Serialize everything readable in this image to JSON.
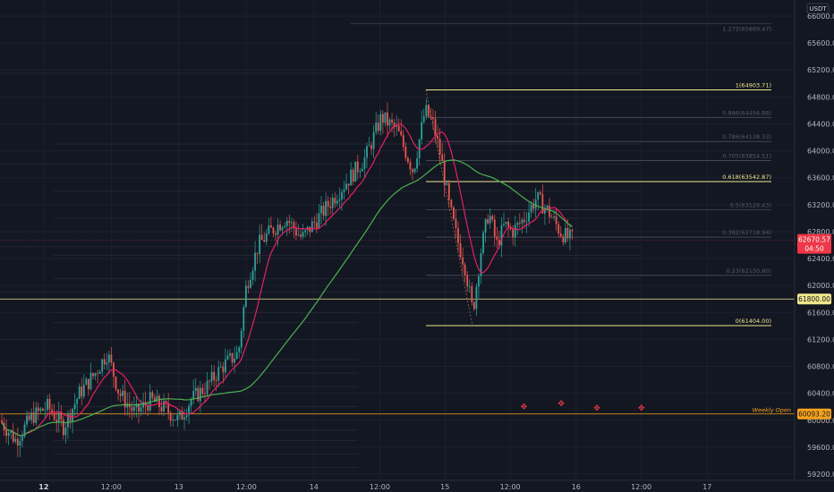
{
  "chart_data": {
    "type": "candlestick",
    "currency": "USDT",
    "ylim": [
      59100,
      66150
    ],
    "y_ticks": [
      66000,
      65600,
      65200,
      64800,
      64400,
      64000,
      63600,
      63200,
      62800,
      62400,
      62000,
      61600,
      61200,
      60800,
      60400,
      60000,
      59600,
      59200
    ],
    "x_labels": [
      {
        "label": "12",
        "bold": true,
        "t": 0.055
      },
      {
        "label": "12:00",
        "bold": false,
        "t": 0.14
      },
      {
        "label": "13",
        "bold": false,
        "t": 0.225
      },
      {
        "label": "12:00",
        "bold": false,
        "t": 0.31
      },
      {
        "label": "14",
        "bold": false,
        "t": 0.395
      },
      {
        "label": "12:00",
        "bold": false,
        "t": 0.478
      },
      {
        "label": "15",
        "bold": false,
        "t": 0.56
      },
      {
        "label": "12:00",
        "bold": false,
        "t": 0.642
      },
      {
        "label": "16",
        "bold": false,
        "t": 0.725
      },
      {
        "label": "12:00",
        "bold": false,
        "t": 0.807
      },
      {
        "label": "17",
        "bold": false,
        "t": 0.89
      }
    ],
    "fib_levels": [
      {
        "label": "1(64903.71)",
        "value": 64903.71,
        "key": true
      },
      {
        "label": "0.886(64494.88)",
        "value": 64494.88,
        "key": false
      },
      {
        "label": "0.786(64138.33)",
        "value": 64138.33,
        "key": false
      },
      {
        "label": "0.705(63854.51)",
        "value": 63854.51,
        "key": false
      },
      {
        "label": "0.618(63542.87)",
        "value": 63542.87,
        "key": true
      },
      {
        "label": "0.5(63126.43)",
        "value": 63126.43,
        "key": false
      },
      {
        "label": "0.382(62718.94)",
        "value": 62718.94,
        "key": false
      },
      {
        "label": "0.23(62150.80)",
        "value": 62150.8,
        "key": false
      },
      {
        "label": "0(61404.00)",
        "value": 61404.0,
        "key": true
      }
    ],
    "ext_level": {
      "label": "1.272(65889.47)",
      "value": 65889.47
    },
    "horizontal_lines": [
      {
        "value": 61800.0,
        "label": "61800.00",
        "color": "#f0e68c"
      },
      {
        "value": 60093.2,
        "label": "60093.20",
        "color": "#f7a21b",
        "caption": "Weekly Open"
      }
    ],
    "current_price": {
      "value": 62670.57,
      "label": "62670.57",
      "countdown": "04:50",
      "color": "#f23645"
    },
    "ma_colors": {
      "fast": "#e91e63",
      "slow": "#4caf50"
    },
    "candle_colors": {
      "up": "#26a69a",
      "down": "#ef5350"
    },
    "cross_markers": [
      {
        "t": 0.72,
        "value": 60200
      },
      {
        "t": 0.767,
        "value": 60250
      },
      {
        "t": 0.812,
        "value": 60180
      },
      {
        "t": 0.868,
        "value": 60180
      }
    ]
  }
}
